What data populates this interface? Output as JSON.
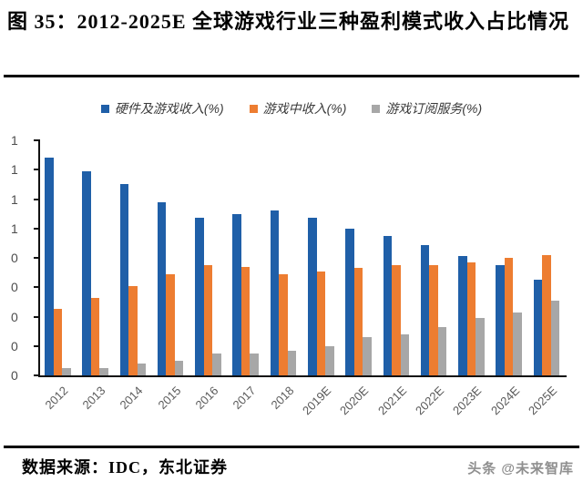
{
  "title": "图 35：2012-2025E 全球游戏行业三种盈利模式收入占比情况",
  "source": "数据来源：IDC，东北证券",
  "watermark": "头条 @未来智库",
  "chart_data": {
    "type": "bar",
    "title": "2012-2025E 全球游戏行业三种盈利模式收入占比情况",
    "categories": [
      "2012",
      "2013",
      "2014",
      "2015",
      "2016",
      "2017",
      "2018",
      "2019E",
      "2020E",
      "2021E",
      "2022E",
      "2023E",
      "2024E",
      "2025E"
    ],
    "series": [
      {
        "name": "硬件及游戏收入(%)",
        "color": "#1F5FA8",
        "values": [
          1.48,
          1.39,
          1.3,
          1.18,
          1.07,
          1.1,
          1.12,
          1.07,
          1.0,
          0.95,
          0.89,
          0.81,
          0.75,
          0.65
        ]
      },
      {
        "name": "游戏中收入(%)",
        "color": "#ED7D31",
        "values": [
          0.45,
          0.53,
          0.61,
          0.69,
          0.75,
          0.74,
          0.69,
          0.71,
          0.73,
          0.75,
          0.75,
          0.77,
          0.8,
          0.82
        ]
      },
      {
        "name": "游戏订阅服务(%)",
        "color": "#A7A7A7",
        "values": [
          0.05,
          0.05,
          0.08,
          0.1,
          0.15,
          0.15,
          0.17,
          0.2,
          0.26,
          0.28,
          0.33,
          0.39,
          0.43,
          0.51
        ]
      }
    ],
    "xlabel": "",
    "ylabel": "",
    "ylim": [
      0,
      1.6
    ],
    "y_axis": {
      "min": 0,
      "max": 1.6,
      "tick_step": 0.2,
      "tick_labels_displayed": [
        "1",
        "1",
        "1",
        "1",
        "0",
        "0",
        "0",
        "0",
        "0"
      ]
    },
    "legend_position": "top",
    "grid": false
  }
}
